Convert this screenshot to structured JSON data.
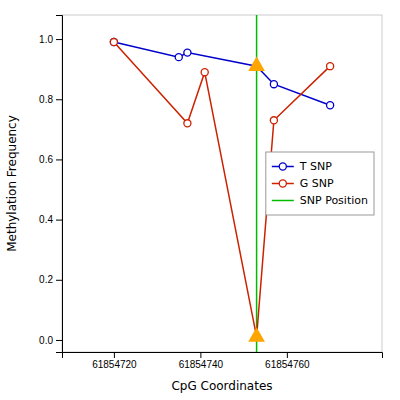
{
  "chart_data": {
    "type": "line",
    "x_label": "CpG Coordinates",
    "y_label": "Methylation Frequency",
    "series": [
      {
        "name": "T SNP",
        "color": "#0000CC",
        "marker": "circle",
        "x": [
          61854720,
          61854735,
          61854737,
          61854753,
          61854757,
          61854770
        ],
        "values": [
          0.99,
          0.94,
          0.955,
          0.91,
          0.85,
          0.78
        ]
      },
      {
        "name": "G SNP",
        "color": "#CC2200",
        "marker": "circle",
        "x": [
          61854720,
          61854737,
          61854741,
          61854753,
          61854757,
          61854770
        ],
        "values": [
          0.99,
          0.72,
          0.89,
          0.01,
          0.73,
          0.91
        ]
      },
      {
        "type": "scatter",
        "color": "#FFA500",
        "marker": "triangle",
        "x": [
          61854753,
          61854753
        ],
        "values": [
          0.91,
          0.01
        ]
      }
    ],
    "vlines": [
      {
        "name": "SNP Position",
        "x": 61854753,
        "color": "#00BB00"
      }
    ],
    "xlim": [
      61854708,
      61854782
    ],
    "ylim": [
      -0.04,
      1.08
    ],
    "xticks": [
      61854720,
      61854740,
      61854760
    ],
    "yticks": [
      {
        "value": 0,
        "label": "0.0"
      },
      0.2,
      0.4,
      0.6,
      0.8,
      {
        "value": 1,
        "label": "1.0"
      }
    ],
    "grid": false,
    "legend": "right"
  }
}
